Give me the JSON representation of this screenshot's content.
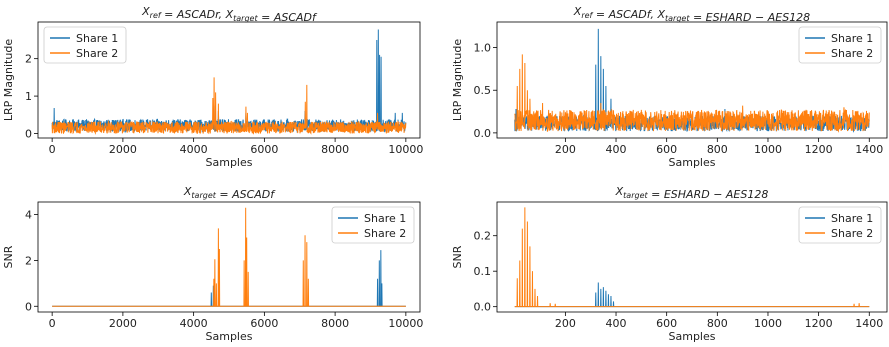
{
  "chart_data": [
    {
      "type": "line",
      "title": "X_ref = ASCADr, X_target = ASCADf",
      "xlabel": "Samples",
      "ylabel": "LRP Magnitude",
      "xlim": [
        -400,
        10400
      ],
      "ylim": [
        -0.12,
        2.98
      ],
      "xticks": [
        0,
        2000,
        4000,
        6000,
        8000,
        10000
      ],
      "yticks": [
        0,
        1,
        2
      ],
      "legend": "top-left",
      "series": [
        {
          "name": "Share 1",
          "color": "#1f77b4",
          "baseline": {
            "x_start": 0,
            "x_end": 10000,
            "low": 0.05,
            "high": 0.38
          },
          "peaks": [
            [
              60,
              0.68
            ],
            [
              4580,
              0.75
            ],
            [
              4700,
              0.6
            ],
            [
              5480,
              0.55
            ],
            [
              7150,
              0.6
            ],
            [
              9180,
              2.5
            ],
            [
              9220,
              2.78
            ],
            [
              9260,
              2.1
            ],
            [
              9300,
              2.05
            ],
            [
              9700,
              0.55
            ],
            [
              9900,
              0.55
            ]
          ]
        },
        {
          "name": "Share 2",
          "color": "#ff7f0e",
          "baseline": {
            "x_start": 0,
            "x_end": 10000,
            "low": 0.0,
            "high": 0.32
          },
          "peaks": [
            [
              4540,
              0.95
            ],
            [
              4580,
              1.5
            ],
            [
              4620,
              1.1
            ],
            [
              4700,
              0.8
            ],
            [
              5480,
              0.72
            ],
            [
              5520,
              0.55
            ],
            [
              7160,
              0.85
            ],
            [
              7200,
              1.3
            ],
            [
              9200,
              0.55
            ]
          ]
        }
      ]
    },
    {
      "type": "line",
      "title": "X_ref = ASCADf, X_target = ESHARD − AES128",
      "xlabel": "Samples",
      "ylabel": "LRP Magnitude",
      "xlim": [
        -70,
        1470
      ],
      "ylim": [
        -0.06,
        1.3
      ],
      "xticks": [
        200,
        400,
        600,
        800,
        1000,
        1200,
        1400
      ],
      "yticks": [
        0.0,
        0.5,
        1.0
      ],
      "legend": "top-right",
      "series": [
        {
          "name": "Share 1",
          "color": "#1f77b4",
          "baseline": {
            "x_start": 0,
            "x_end": 1400,
            "low": 0.02,
            "high": 0.2
          },
          "peaks": [
            [
              5,
              0.28
            ],
            [
              320,
              0.8
            ],
            [
              330,
              1.22
            ],
            [
              340,
              0.9
            ],
            [
              350,
              0.75
            ],
            [
              360,
              0.55
            ],
            [
              380,
              0.4
            ],
            [
              830,
              0.28
            ]
          ]
        },
        {
          "name": "Share 2",
          "color": "#ff7f0e",
          "baseline": {
            "x_start": 0,
            "x_end": 1400,
            "low": 0.02,
            "high": 0.27
          },
          "peaks": [
            [
              10,
              0.55
            ],
            [
              20,
              0.75
            ],
            [
              30,
              0.92
            ],
            [
              40,
              0.82
            ],
            [
              50,
              0.5
            ],
            [
              60,
              0.4
            ],
            [
              110,
              0.35
            ],
            [
              340,
              0.35
            ],
            [
              900,
              0.32
            ],
            [
              1300,
              0.3
            ]
          ]
        }
      ]
    },
    {
      "type": "line",
      "title": "X_target = ASCADf",
      "xlabel": "Samples",
      "ylabel": "SNR",
      "xlim": [
        -400,
        10400
      ],
      "ylim": [
        -0.25,
        4.55
      ],
      "xticks": [
        0,
        2000,
        4000,
        6000,
        8000,
        10000
      ],
      "yticks": [
        0,
        2,
        4
      ],
      "legend": "top-right",
      "series": [
        {
          "name": "Share 1",
          "color": "#1f77b4",
          "baseline": {
            "x_start": 0,
            "x_end": 10000,
            "low": 0.0,
            "high": 0.0
          },
          "peaks": [
            [
              4500,
              0.6
            ],
            [
              4560,
              0.9
            ],
            [
              9200,
              1.2
            ],
            [
              9250,
              2.0
            ],
            [
              9290,
              2.45
            ],
            [
              9320,
              1.0
            ]
          ]
        },
        {
          "name": "Share 2",
          "color": "#ff7f0e",
          "baseline": {
            "x_start": 0,
            "x_end": 10000,
            "low": 0.0,
            "high": 0.0
          },
          "peaks": [
            [
              4570,
              1.2
            ],
            [
              4600,
              2.05
            ],
            [
              4640,
              1.0
            ],
            [
              4700,
              3.4
            ],
            [
              4730,
              2.5
            ],
            [
              5430,
              2.0
            ],
            [
              5470,
              4.3
            ],
            [
              5500,
              3.0
            ],
            [
              5540,
              1.5
            ],
            [
              7100,
              2.0
            ],
            [
              7150,
              3.1
            ],
            [
              7200,
              2.8
            ],
            [
              7240,
              1.2
            ]
          ]
        }
      ]
    },
    {
      "type": "line",
      "title": "X_target = ESHARD − AES128",
      "xlabel": "Samples",
      "ylabel": "SNR",
      "xlim": [
        -70,
        1470
      ],
      "ylim": [
        -0.015,
        0.295
      ],
      "xticks": [
        200,
        400,
        600,
        800,
        1000,
        1200,
        1400
      ],
      "yticks": [
        0.0,
        0.1,
        0.2
      ],
      "legend": "top-right",
      "series": [
        {
          "name": "Share 1",
          "color": "#1f77b4",
          "baseline": {
            "x_start": 0,
            "x_end": 1400,
            "low": 0.0,
            "high": 0.0
          },
          "peaks": [
            [
              320,
              0.04
            ],
            [
              330,
              0.068
            ],
            [
              340,
              0.05
            ],
            [
              350,
              0.055
            ],
            [
              360,
              0.045
            ],
            [
              370,
              0.035
            ],
            [
              380,
              0.03
            ],
            [
              390,
              0.015
            ]
          ]
        },
        {
          "name": "Share 2",
          "color": "#ff7f0e",
          "baseline": {
            "x_start": 0,
            "x_end": 1400,
            "low": 0.0,
            "high": 0.0
          },
          "peaks": [
            [
              10,
              0.08
            ],
            [
              20,
              0.13
            ],
            [
              30,
              0.22
            ],
            [
              40,
              0.28
            ],
            [
              50,
              0.24
            ],
            [
              60,
              0.17
            ],
            [
              70,
              0.1
            ],
            [
              80,
              0.05
            ],
            [
              90,
              0.03
            ],
            [
              140,
              0.01
            ],
            [
              160,
              0.008
            ],
            [
              1340,
              0.008
            ],
            [
              1360,
              0.01
            ]
          ]
        }
      ]
    }
  ]
}
